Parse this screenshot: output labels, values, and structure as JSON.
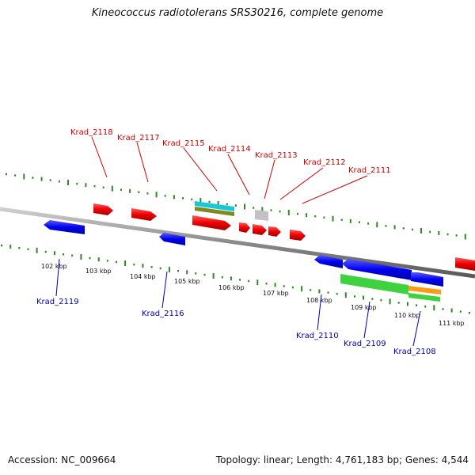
{
  "title": "Kineococcus radiotolerans SRS30216, complete genome",
  "footer": {
    "accession": "Accession: NC_009664",
    "summary": "Topology: linear; Length: 4,761,183 bp; Genes: 4,544"
  },
  "colors": {
    "forward_gene": "#ee0000",
    "reverse_gene": "#0000ee",
    "axis": "#888888",
    "tick": "#2a8a1e",
    "forward_label": "#d00000",
    "reverse_label": "#0000b4"
  },
  "scale_labels": [
    "102 kbp",
    "103 kbp",
    "104 kbp",
    "105 kbp",
    "106 kbp",
    "107 kbp",
    "108 kbp",
    "109 kbp",
    "110 kbp",
    "111 kbp"
  ],
  "forward_labels": [
    "Krad_2118",
    "Krad_2117",
    "Krad_2115",
    "Krad_2114",
    "Krad_2113",
    "Krad_2112",
    "Krad_2111"
  ],
  "reverse_labels": [
    "Krad_2119",
    "Krad_2116",
    "Krad_2110",
    "Krad_2109",
    "Krad_2108"
  ]
}
